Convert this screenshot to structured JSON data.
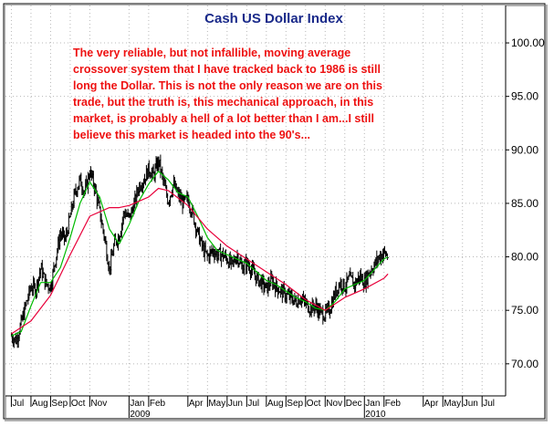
{
  "chart_data": {
    "type": "line",
    "title": "Cash US Dollar Index",
    "annotation": "The very reliable, but not infallible, moving average crossover system that I have tracked back to 1986 is still long the Dollar. This is not the only reason we are on this trade, but the truth is, this mechanical approach, in this market, is probably a hell of a lot better than I am...I still believe this market is headed into the 90's...",
    "annotation_lines": [
      "The very reliable, but not infallible, moving average",
      "crossover system that I have tracked back to 1986 is still",
      "long the Dollar. This is not the only reason we are on this",
      "trade, but the truth is, this mechanical approach, in this",
      "market, is probably a hell of a lot better than I am...I still",
      "believe this market is headed into the 90's..."
    ],
    "x_tick_labels": [
      "Jul",
      "Aug",
      "Sep",
      "Oct",
      "Nov",
      "Jan",
      "Feb",
      "Apr",
      "May",
      "Jun",
      "Jul",
      "Aug",
      "Sep",
      "Oct",
      "Nov",
      "Dec",
      "Jan",
      "Feb",
      "Apr",
      "May",
      "Jun",
      "Jul"
    ],
    "x_tick_months": [
      0,
      1,
      2,
      3,
      4,
      6,
      7,
      9,
      10,
      11,
      12,
      13,
      14,
      15,
      16,
      17,
      18,
      19,
      21,
      22,
      23,
      24
    ],
    "x_month_range": [
      -0.3,
      25.2
    ],
    "x_origin": "Jul 2008",
    "year_labels": [
      {
        "label": "2009",
        "month": 6
      },
      {
        "label": "2010",
        "month": 18
      }
    ],
    "y_ticks": [
      "100.00",
      "95.00",
      "90.00",
      "85.00",
      "80.00",
      "75.00",
      "70.00"
    ],
    "y_tick_values": [
      100,
      95,
      90,
      85,
      80,
      75,
      70
    ],
    "ylim": [
      67,
      103.5
    ],
    "axis_side": "right",
    "series": [
      {
        "style": "price-bars",
        "color": "#000000",
        "x": [
          0,
          0.25,
          0.5,
          0.75,
          1,
          1.25,
          1.5,
          1.75,
          2,
          2.25,
          2.5,
          2.75,
          3,
          3.25,
          3.5,
          3.75,
          4,
          4.25,
          4.5,
          4.75,
          5,
          5.25,
          5.5,
          5.75,
          6,
          6.25,
          6.5,
          6.75,
          7,
          7.25,
          7.5,
          7.75,
          8,
          8.25,
          8.5,
          8.75,
          9,
          9.25,
          9.5,
          9.75,
          10,
          10.25,
          10.5,
          10.75,
          11,
          11.25,
          11.5,
          11.75,
          12,
          12.25,
          12.5,
          12.75,
          13,
          13.25,
          13.5,
          13.75,
          14,
          14.25,
          14.5,
          14.75,
          15,
          15.25,
          15.5,
          15.75,
          16,
          16.25,
          16.5,
          16.75,
          17,
          17.25,
          17.5,
          17.75,
          18,
          18.25,
          18.5,
          18.75,
          19,
          19.2
        ],
        "values": [
          72.6,
          72.2,
          73.8,
          75.6,
          77.2,
          77.0,
          79.0,
          77.5,
          77.2,
          79.8,
          82.2,
          81.6,
          83.8,
          86.0,
          87.2,
          86.0,
          88.0,
          86.5,
          84.2,
          81.8,
          78.8,
          81.2,
          82.0,
          84.2,
          83.6,
          84.8,
          86.6,
          87.2,
          88.2,
          87.6,
          89.0,
          87.0,
          85.2,
          86.8,
          85.8,
          85.0,
          85.4,
          84.0,
          82.2,
          80.8,
          80.0,
          80.6,
          80.2,
          80.2,
          79.8,
          79.2,
          80.2,
          79.0,
          79.4,
          78.8,
          78.0,
          77.6,
          77.0,
          77.8,
          77.2,
          76.8,
          76.4,
          76.2,
          75.8,
          76.2,
          75.6,
          75.2,
          75.4,
          74.8,
          74.6,
          75.2,
          76.6,
          77.6,
          77.2,
          78.0,
          77.4,
          78.2,
          77.6,
          78.6,
          79.2,
          80.0,
          80.4,
          80.0
        ]
      },
      {
        "style": "short-moving-average",
        "color": "#00bb00",
        "x": [
          0,
          0.5,
          1,
          1.5,
          2,
          2.5,
          3,
          3.5,
          4,
          4.5,
          5,
          5.5,
          6,
          6.5,
          7,
          7.5,
          8,
          8.5,
          9,
          9.5,
          10,
          10.5,
          11,
          11.5,
          12,
          12.5,
          13,
          13.5,
          14,
          14.5,
          15,
          15.5,
          16,
          16.5,
          17,
          17.5,
          18,
          18.5,
          19,
          19.2
        ],
        "values": [
          72.6,
          73.0,
          75.4,
          77.6,
          77.6,
          79.0,
          81.8,
          85.0,
          87.0,
          85.6,
          82.6,
          81.2,
          83.0,
          85.2,
          86.8,
          88.0,
          87.2,
          86.0,
          85.6,
          83.8,
          81.8,
          80.6,
          80.2,
          79.8,
          79.4,
          78.6,
          77.8,
          77.4,
          76.8,
          76.2,
          75.8,
          75.2,
          75.0,
          75.8,
          77.0,
          77.4,
          77.8,
          78.8,
          79.8,
          80.0
        ]
      },
      {
        "style": "long-moving-average",
        "color": "#e8003a",
        "x": [
          0,
          1,
          2,
          3,
          4,
          5,
          5.5,
          6,
          7,
          7.5,
          8,
          9,
          10,
          11,
          12,
          13,
          14,
          15,
          16,
          17,
          18,
          19,
          19.2
        ],
        "values": [
          72.8,
          74.0,
          76.4,
          80.2,
          83.8,
          84.6,
          84.6,
          84.8,
          85.6,
          86.4,
          86.2,
          84.8,
          82.6,
          81.0,
          79.8,
          78.6,
          77.4,
          76.0,
          75.0,
          76.2,
          77.0,
          78.0,
          78.4
        ]
      }
    ]
  }
}
